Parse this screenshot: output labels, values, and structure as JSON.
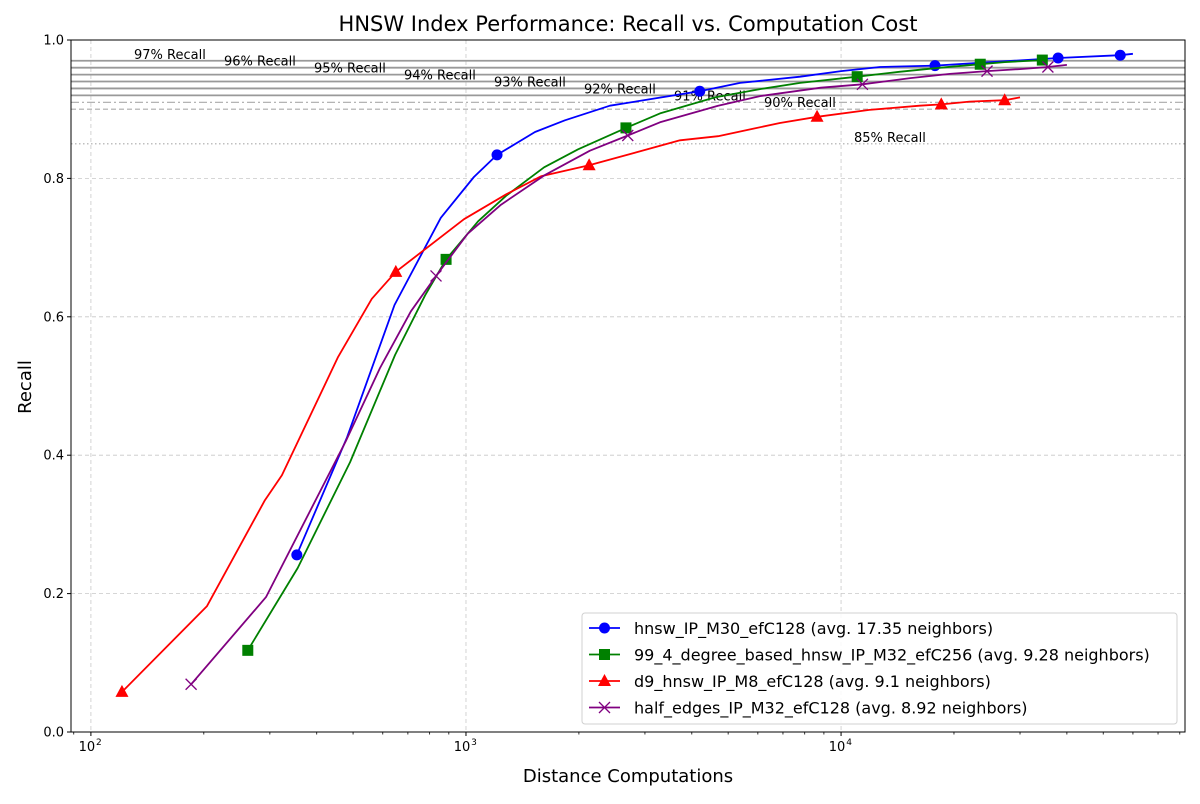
{
  "chart_data": {
    "type": "line",
    "title": "HNSW Index Performance: Recall vs. Computation Cost",
    "xlabel": "Distance Computations",
    "ylabel": "Recall",
    "xscale": "log",
    "xlim": [
      88.5,
      82600
    ],
    "ylim": [
      0,
      1.0
    ],
    "x_ticks": [
      {
        "value": 100,
        "label": "10",
        "exp": "2"
      },
      {
        "value": 1000,
        "label": "10",
        "exp": "3"
      },
      {
        "value": 10000,
        "label": "10",
        "exp": "4"
      }
    ],
    "y_ticks": [
      "0.0",
      "0.2",
      "0.4",
      "0.6",
      "0.8",
      "1.0"
    ],
    "grid": true,
    "legend_position": "bottom-right",
    "reference_lines": [
      {
        "y": 0.97,
        "label": "97% Recall",
        "style": "solid"
      },
      {
        "y": 0.96,
        "label": "96% Recall",
        "style": "solid"
      },
      {
        "y": 0.95,
        "label": "95% Recall",
        "style": "solid"
      },
      {
        "y": 0.94,
        "label": "94% Recall",
        "style": "solid"
      },
      {
        "y": 0.93,
        "label": "93% Recall",
        "style": "solid"
      },
      {
        "y": 0.92,
        "label": "92% Recall",
        "style": "solid"
      },
      {
        "y": 0.91,
        "label": "91% Recall",
        "style": "dashdot"
      },
      {
        "y": 0.9,
        "label": "90% Recall",
        "style": "dashed"
      },
      {
        "y": 0.85,
        "label": "85% Recall",
        "style": "dotted"
      }
    ],
    "series": [
      {
        "name": "hnsw_IP_M30_efC128 (avg. 17.35 neighbors)",
        "color": "#0000ff",
        "marker": "circle",
        "x": [
          354,
          482,
          645,
          857,
          1050,
          1210,
          1528,
          1835,
          2420,
          4200,
          5380,
          7780,
          10000,
          12700,
          17800,
          23500,
          37900,
          55500,
          60000
        ],
        "y": [
          0.256,
          0.426,
          0.617,
          0.743,
          0.802,
          0.834,
          0.867,
          0.884,
          0.905,
          0.926,
          0.938,
          0.947,
          0.955,
          0.961,
          0.963,
          0.967,
          0.974,
          0.978,
          0.98
        ],
        "marker_x": [
          354,
          1210,
          4200,
          17800,
          37900,
          55500
        ]
      },
      {
        "name": "99_4_degree_based_hnsw_IP_M32_efC256 (avg. 9.28 neighbors)",
        "color": "#008000",
        "marker": "square",
        "x": [
          262,
          356,
          491,
          647,
          778,
          885,
          1077,
          1280,
          1615,
          1990,
          2670,
          3290,
          4610,
          6080,
          7780,
          11040,
          14300,
          18400,
          23500,
          27300,
          34400
        ],
        "y": [
          0.118,
          0.237,
          0.39,
          0.545,
          0.631,
          0.683,
          0.738,
          0.775,
          0.816,
          0.842,
          0.873,
          0.894,
          0.917,
          0.929,
          0.938,
          0.947,
          0.954,
          0.96,
          0.965,
          0.968,
          0.971
        ],
        "marker_x": [
          262,
          885,
          2670,
          11040,
          23500,
          34400
        ]
      },
      {
        "name": "d9_hnsw_IP_M8_efC128 (avg. 9.1 neighbors)",
        "color": "#ff0000",
        "marker": "triangle",
        "x": [
          121,
          204,
          291,
          323,
          456,
          561,
          650,
          988,
          1280,
          1585,
          2130,
          3720,
          4700,
          6870,
          8630,
          11900,
          16200,
          18500,
          22000,
          27300,
          30000
        ],
        "y": [
          0.058,
          0.182,
          0.335,
          0.371,
          0.542,
          0.626,
          0.665,
          0.741,
          0.777,
          0.803,
          0.819,
          0.855,
          0.861,
          0.88,
          0.889,
          0.899,
          0.905,
          0.907,
          0.911,
          0.913,
          0.917
        ],
        "marker_x": [
          121,
          650,
          2130,
          8630,
          18500,
          27300
        ]
      },
      {
        "name": "half_edges_IP_M32_efC128 (avg. 8.92 neighbors)",
        "color": "#800080",
        "marker": "x",
        "x": [
          185,
          293,
          478,
          590,
          713,
          832,
          1010,
          1240,
          1625,
          2140,
          2700,
          3290,
          4700,
          6080,
          8830,
          11400,
          15300,
          19500,
          24500,
          30000,
          35600,
          40000
        ],
        "y": [
          0.069,
          0.195,
          0.42,
          0.526,
          0.608,
          0.659,
          0.72,
          0.762,
          0.805,
          0.84,
          0.862,
          0.881,
          0.905,
          0.919,
          0.931,
          0.936,
          0.945,
          0.951,
          0.955,
          0.958,
          0.961,
          0.964
        ],
        "marker_x": [
          185,
          832,
          2700,
          11400,
          24500,
          35600
        ]
      }
    ]
  }
}
